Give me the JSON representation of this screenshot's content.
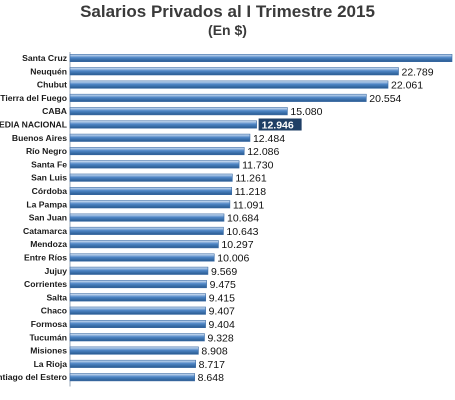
{
  "chart_data": {
    "type": "bar",
    "orientation": "horizontal",
    "title": "Salarios Privados al I Trimestre 2015",
    "subtitle": "(En $)",
    "categories": [
      "Santa Cruz",
      "Neuquén",
      "Chubut",
      "Tierra del Fuego",
      "CABA",
      "MEDIA NACIONAL",
      "Buenos Aires",
      "Río Negro",
      "Santa Fe",
      "San Luis",
      "Córdoba",
      "La Pampa",
      "San Juan",
      "Catamarca",
      "Mendoza",
      "Entre Ríos",
      "Jujuy",
      "Corrientes",
      "Salta",
      "Chaco",
      "Formosa",
      "Tucumán",
      "Misiones",
      "La Rioja",
      "Santiago del Estero"
    ],
    "values": [
      26500,
      22789,
      22061,
      20554,
      15080,
      12946,
      12484,
      12086,
      11730,
      11261,
      11218,
      11091,
      10684,
      10643,
      10297,
      10006,
      9569,
      9475,
      9415,
      9407,
      9404,
      9328,
      8908,
      8717,
      8648
    ],
    "value_labels": [
      "",
      "22.789",
      "22.061",
      "20.554",
      "15.080",
      "12.946",
      "12.484",
      "12.086",
      "11.730",
      "11.261",
      "11.218",
      "11.091",
      "10.684",
      "10.643",
      "10.297",
      "10.006",
      "9.569",
      "9.475",
      "9.415",
      "9.407",
      "9.404",
      "9.328",
      "8.908",
      "8.717",
      "8.648"
    ],
    "highlight": "MEDIA NACIONAL",
    "xlim": [
      0,
      26500
    ],
    "grid": false,
    "legend": "none",
    "colors": {
      "bar_gradient": [
        "#dbe8f7",
        "#4f86c6",
        "#27598f"
      ],
      "bar_outline": "#3a6aa3",
      "highlight_bg": "#1f3f66"
    }
  }
}
